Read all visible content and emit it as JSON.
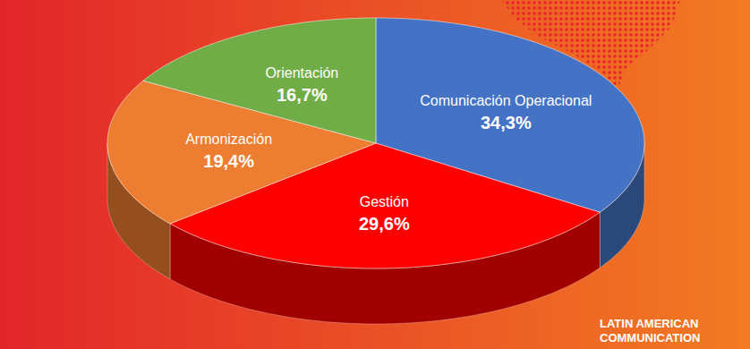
{
  "chart_data": {
    "type": "pie",
    "categories": [
      "Comunicación Operacional",
      "Gestión",
      "Armonización",
      "Orientación"
    ],
    "values": [
      34.3,
      29.6,
      19.4,
      16.7
    ],
    "value_labels": [
      "34,3%",
      "29,6%",
      "19,4%",
      "16,7%"
    ],
    "colors": [
      "#4472c4",
      "#ff0000",
      "#ed7d31",
      "#70ad47"
    ],
    "data_labels": true,
    "annotations": [
      "LATIN AMERICAN",
      "COMMUNICATION"
    ]
  }
}
